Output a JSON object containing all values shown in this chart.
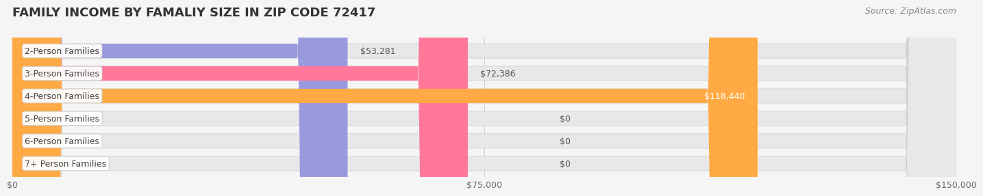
{
  "title": "FAMILY INCOME BY FAMALIY SIZE IN ZIP CODE 72417",
  "source": "Source: ZipAtlas.com",
  "categories": [
    "2-Person Families",
    "3-Person Families",
    "4-Person Families",
    "5-Person Families",
    "6-Person Families",
    "7+ Person Families"
  ],
  "values": [
    53281,
    72386,
    118440,
    0,
    0,
    0
  ],
  "bar_colors": [
    "#9999dd",
    "#ff7799",
    "#ffaa44",
    "#ff9999",
    "#aabbdd",
    "#ccaacc"
  ],
  "label_colors": [
    "#333333",
    "#333333",
    "#ffffff",
    "#333333",
    "#333333",
    "#333333"
  ],
  "xlim": [
    0,
    150000
  ],
  "xticks": [
    0,
    75000,
    150000
  ],
  "xtick_labels": [
    "$0",
    "$75,000",
    "$150,000"
  ],
  "background_color": "#f5f5f5",
  "bar_bg_color": "#ebebeb",
  "title_fontsize": 13,
  "source_fontsize": 9,
  "label_fontsize": 9,
  "bar_height": 0.62
}
